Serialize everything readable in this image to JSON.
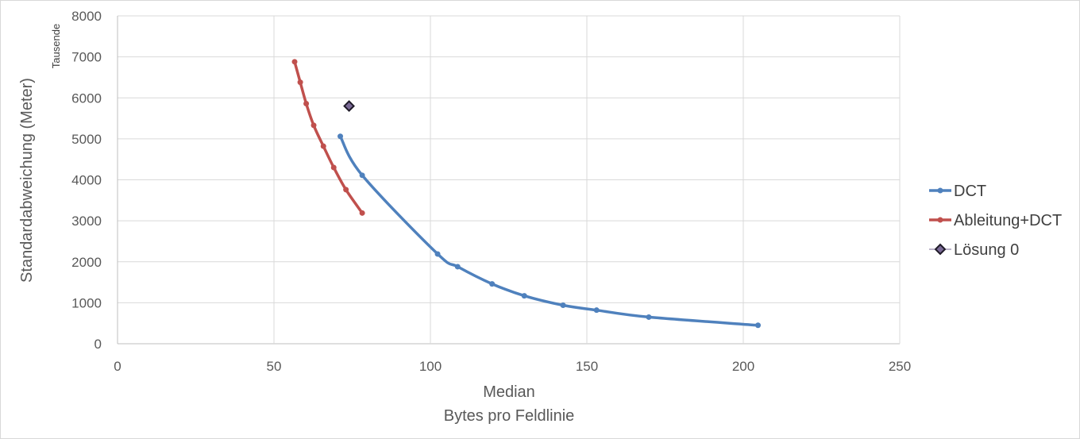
{
  "chart_data": {
    "type": "scatter",
    "x_axis": {
      "title_lines": [
        "Median",
        "Bytes pro Feldlinie"
      ],
      "min": 0,
      "max": 250,
      "ticks": [
        0,
        50,
        100,
        150,
        200,
        250
      ],
      "tick_labels": [
        "0",
        "50",
        "100",
        "150",
        "200",
        "250"
      ]
    },
    "y_axis": {
      "title": "Standardabweichung (Meter)",
      "display_unit": "Tausende",
      "min": 0,
      "max": 8000,
      "ticks": [
        0,
        1000,
        2000,
        3000,
        4000,
        5000,
        6000,
        7000,
        8000
      ],
      "tick_labels": [
        "0",
        "1000",
        "2000",
        "3000",
        "4000",
        "5000",
        "6000",
        "7000",
        "8000"
      ]
    },
    "grid": true,
    "legend_position": "right",
    "series": [
      {
        "name": "DCT",
        "color": "#4f81bd",
        "style": "smooth-line-markers",
        "points": [
          [
            71.2,
            5060
          ],
          [
            78.2,
            4110
          ],
          [
            102.3,
            2190
          ],
          [
            108.7,
            1880
          ],
          [
            119.7,
            1460
          ],
          [
            130,
            1170
          ],
          [
            142.4,
            940
          ],
          [
            153.1,
            820
          ],
          [
            169.8,
            650
          ],
          [
            204.7,
            450
          ]
        ]
      },
      {
        "name": "Ableitung+DCT",
        "color": "#c0504d",
        "style": "smooth-line-markers",
        "points": [
          [
            56.6,
            6880
          ],
          [
            58.4,
            6380
          ],
          [
            60.3,
            5860
          ],
          [
            62.7,
            5330
          ],
          [
            65.8,
            4820
          ],
          [
            69.1,
            4300
          ],
          [
            73,
            3760
          ],
          [
            78.2,
            3190
          ]
        ]
      },
      {
        "name": "Lösung 0",
        "color": "#403152",
        "style": "diamond-marker",
        "points": [
          [
            74,
            5800
          ]
        ]
      }
    ]
  }
}
